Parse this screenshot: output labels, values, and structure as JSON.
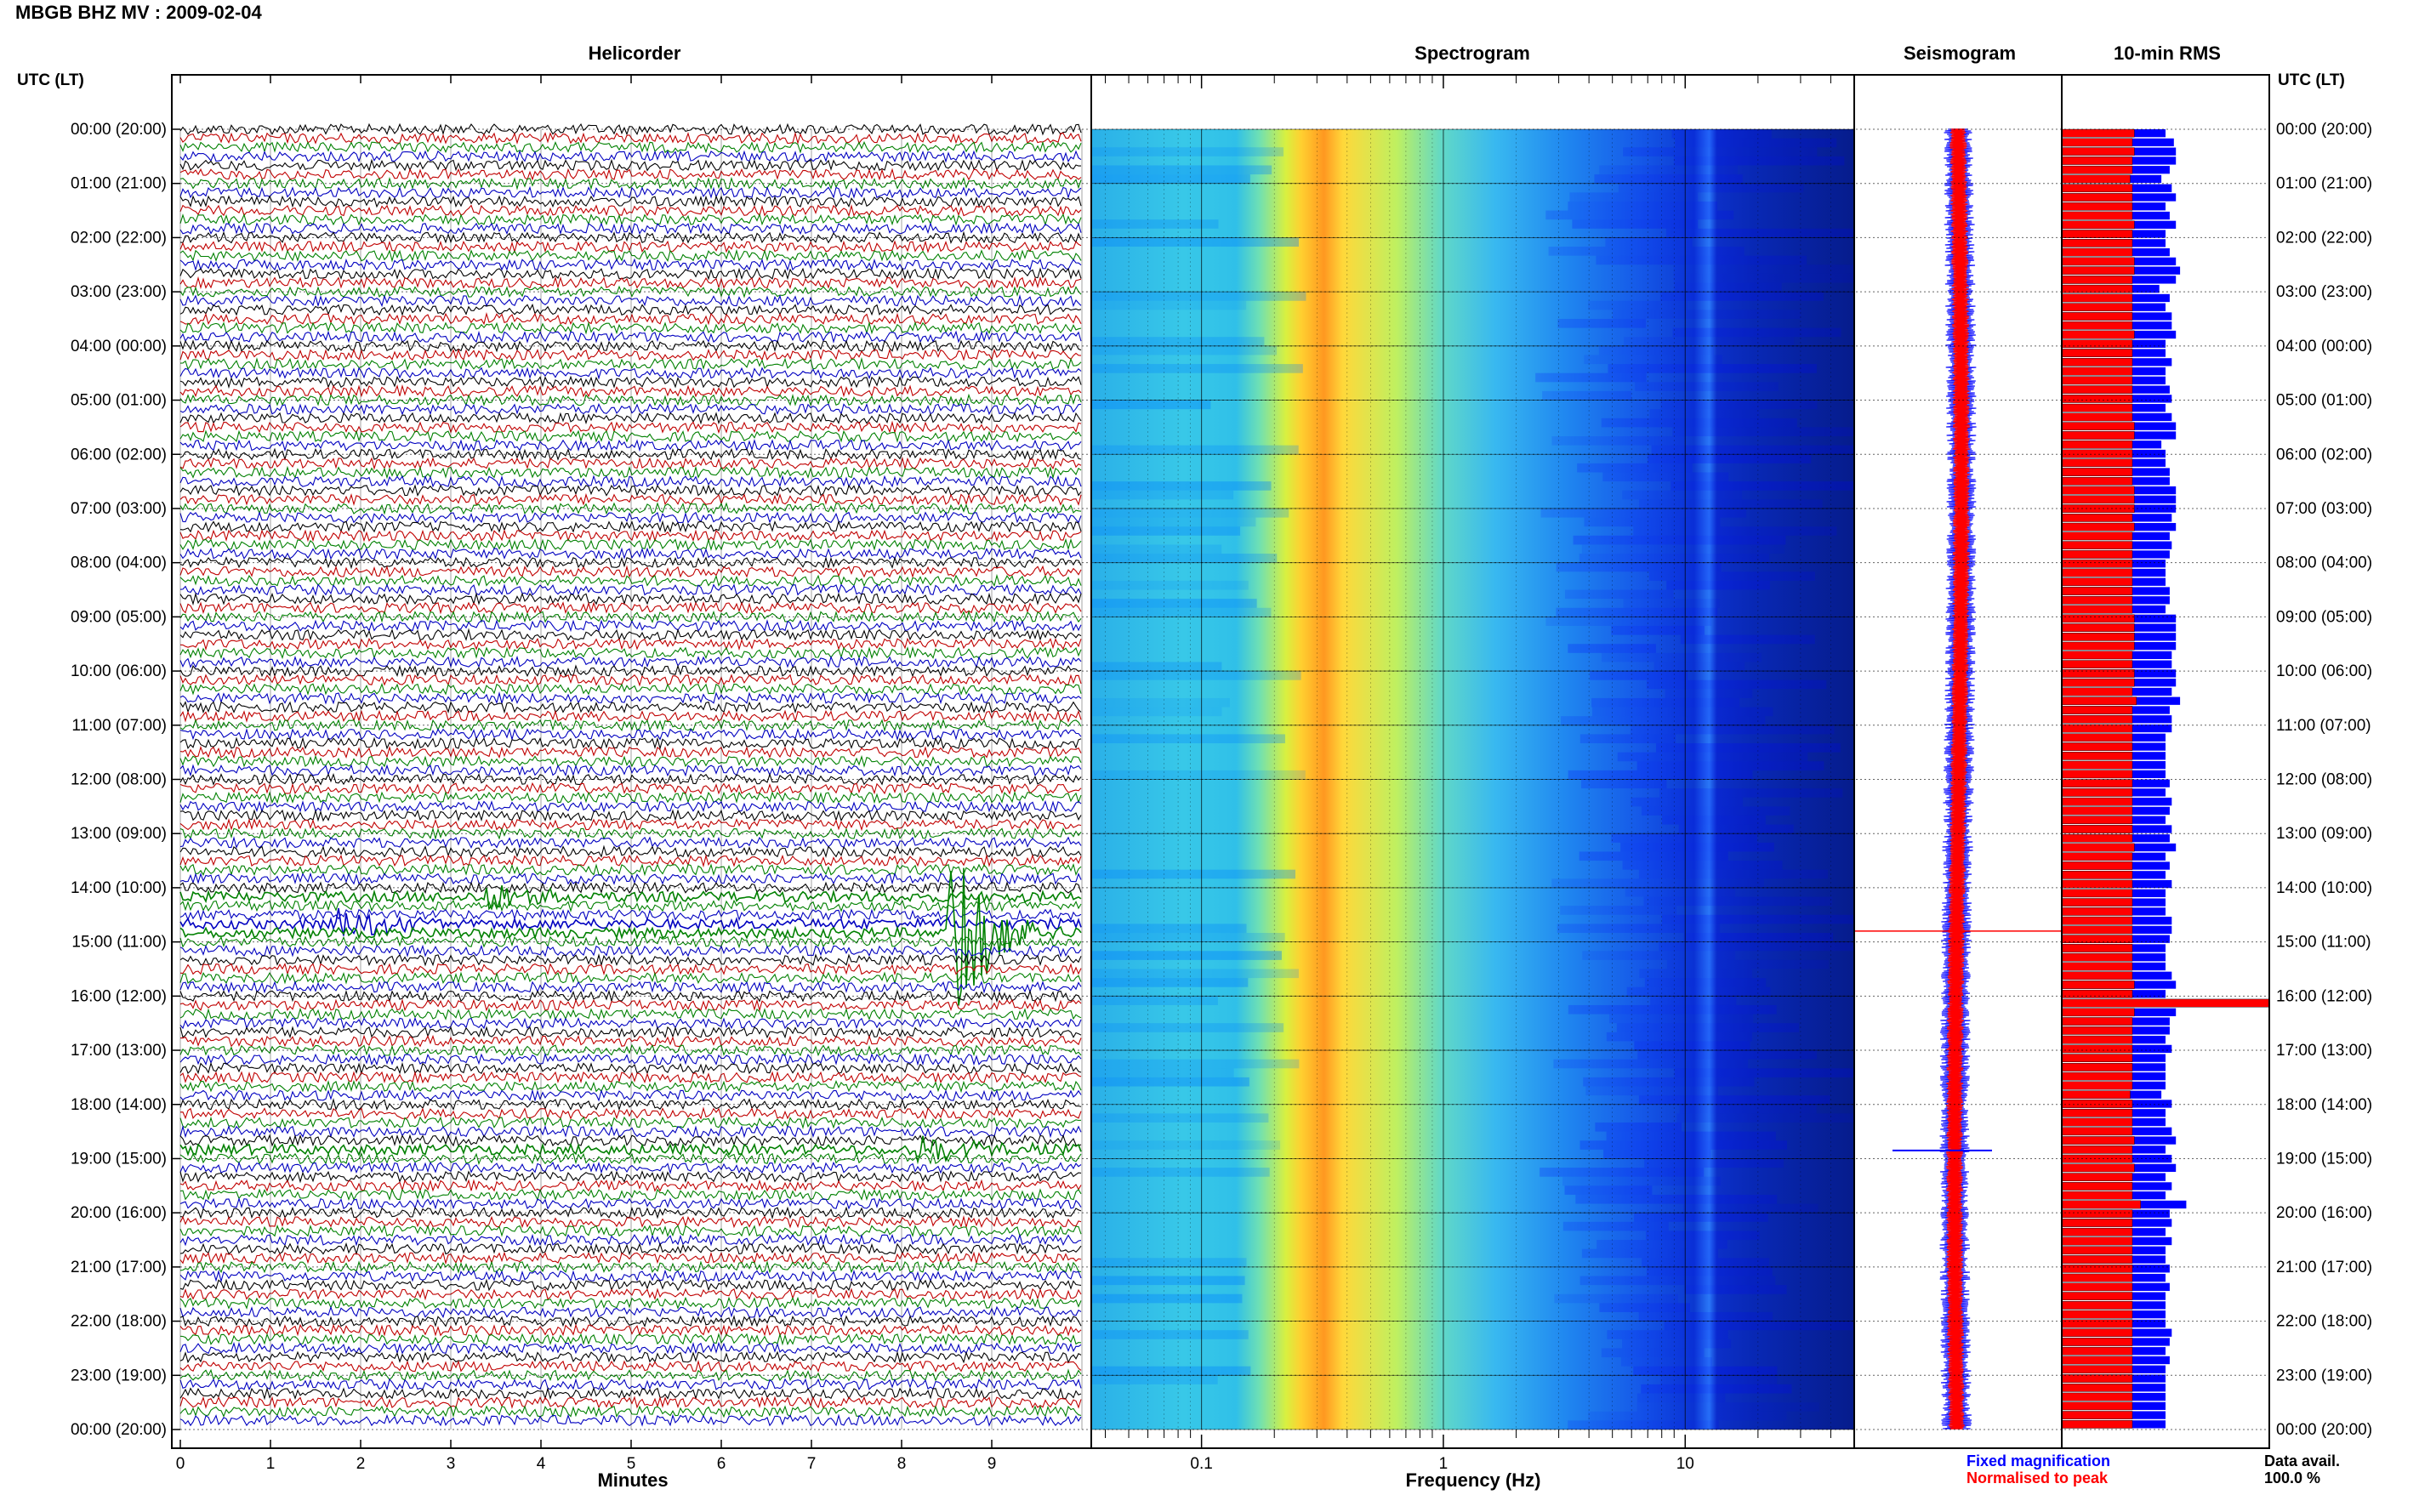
{
  "header": {
    "title": "MBGB BHZ MV : 2009-02-04",
    "utc_label": "UTC (LT)",
    "utc_label_right": "UTC (LT)"
  },
  "panels": {
    "helicorder": "Helicorder",
    "spectrogram": "Spectrogram",
    "seismogram": "Seismogram",
    "rms": "10-min RMS"
  },
  "axes": {
    "helicorder_xlabel": "Minutes",
    "spectrogram_xlabel": "Frequency (Hz)"
  },
  "legend": {
    "fixed": "Fixed magnification",
    "normalised": "Normalised to peak",
    "fixed_color": "#0000ff",
    "normalised_color": "#ff0000"
  },
  "data_avail": {
    "label": "Data avail.",
    "value": "100.0 %"
  },
  "chart_data": {
    "type": "helicorder-spectrogram",
    "time_labels": [
      "00:00 (20:00)",
      "01:00 (21:00)",
      "02:00 (22:00)",
      "03:00 (23:00)",
      "04:00 (00:00)",
      "05:00 (01:00)",
      "06:00 (02:00)",
      "07:00 (03:00)",
      "08:00 (04:00)",
      "09:00 (05:00)",
      "10:00 (06:00)",
      "11:00 (07:00)",
      "12:00 (08:00)",
      "13:00 (09:00)",
      "14:00 (10:00)",
      "15:00 (11:00)",
      "16:00 (12:00)",
      "17:00 (13:00)",
      "18:00 (14:00)",
      "19:00 (15:00)",
      "20:00 (16:00)",
      "21:00 (17:00)",
      "22:00 (18:00)",
      "23:00 (19:00)",
      "00:00 (20:00)"
    ],
    "helicorder": {
      "x_ticks": [
        "0",
        "1",
        "2",
        "3",
        "4",
        "5",
        "6",
        "7",
        "8",
        "9"
      ],
      "xlim": [
        0,
        10
      ],
      "trace_colors": [
        "#000000",
        "#c00000",
        "#008000",
        "#0000c0"
      ],
      "traces_per_hour": 6,
      "events": [
        {
          "time": "14:10",
          "minute": 3.4,
          "amplitude": "medium",
          "color": "#008000"
        },
        {
          "time": "14:40",
          "minute": 1.8,
          "amplitude": "medium",
          "color": "#0000c0"
        },
        {
          "time": "14:50",
          "minute": 8.55,
          "amplitude": "large",
          "color": "#008000"
        },
        {
          "time": "18:50",
          "minute": 8.2,
          "amplitude": "medium",
          "color": "#008000"
        }
      ]
    },
    "spectrogram": {
      "x_scale": "log",
      "xlim": [
        0.035,
        50
      ],
      "x_ticks": [
        0.1,
        1,
        10
      ],
      "x_tick_labels": [
        "0.1",
        "1",
        "10"
      ],
      "peak_band_hz": [
        0.18,
        0.35
      ],
      "colormap": [
        "#00008b",
        "#0000ff",
        "#0080ff",
        "#00c8ff",
        "#40e0d0",
        "#c8ff40",
        "#ffff00",
        "#ffa500",
        "#ff4000"
      ]
    },
    "seismogram": {
      "series": [
        {
          "name": "Fixed magnification",
          "color": "#0000ff"
        },
        {
          "name": "Normalised to peak",
          "color": "#ff0000"
        }
      ]
    },
    "rms": {
      "intervals_per_hour": 6,
      "fixed_values": [
        0.5,
        0.54,
        0.55,
        0.55,
        0.52,
        0.48,
        0.53,
        0.55,
        0.5,
        0.52,
        0.55,
        0.5,
        0.5,
        0.52,
        0.55,
        0.57,
        0.55,
        0.47,
        0.52,
        0.5,
        0.53,
        0.53,
        0.55,
        0.5,
        0.5,
        0.53,
        0.5,
        0.5,
        0.52,
        0.53,
        0.5,
        0.53,
        0.55,
        0.55,
        0.48,
        0.5,
        0.5,
        0.52,
        0.52,
        0.55,
        0.55,
        0.55,
        0.53,
        0.55,
        0.52,
        0.53,
        0.52,
        0.5,
        0.5,
        0.5,
        0.52,
        0.52,
        0.5,
        0.55,
        0.55,
        0.55,
        0.55,
        0.53,
        0.53,
        0.55,
        0.55,
        0.53,
        0.57,
        0.52,
        0.53,
        0.53,
        0.5,
        0.5,
        0.5,
        0.5,
        0.5,
        0.52,
        0.5,
        0.53,
        0.52,
        0.5,
        0.53,
        0.52,
        0.55,
        0.5,
        0.52,
        0.5,
        0.53,
        0.5,
        0.5,
        0.5,
        0.53,
        0.53,
        0.52,
        0.5,
        0.5,
        0.5,
        0.53,
        0.55,
        0.5,
        1.0,
        0.55,
        0.52,
        0.52,
        0.5,
        0.53,
        0.5,
        0.5,
        0.5,
        0.5,
        0.48,
        0.53,
        0.5,
        0.5,
        0.53,
        0.55,
        0.5,
        0.53,
        0.55,
        0.5,
        0.53,
        0.5,
        0.6,
        0.52,
        0.53,
        0.5,
        0.53,
        0.5,
        0.5,
        0.52,
        0.5,
        0.52,
        0.5,
        0.5,
        0.5,
        0.5,
        0.53,
        0.52,
        0.5,
        0.52,
        0.5,
        0.5,
        0.5,
        0.5,
        0.5,
        0.5,
        0.5
      ],
      "normalised_values": [
        0.35,
        0.34,
        0.35,
        0.34,
        0.34,
        0.33,
        0.34,
        0.34,
        0.34,
        0.34,
        0.35,
        0.34,
        0.34,
        0.34,
        0.35,
        0.35,
        0.34,
        0.34,
        0.34,
        0.34,
        0.34,
        0.34,
        0.35,
        0.34,
        0.34,
        0.34,
        0.34,
        0.34,
        0.34,
        0.34,
        0.34,
        0.34,
        0.35,
        0.35,
        0.34,
        0.34,
        0.34,
        0.34,
        0.34,
        0.35,
        0.35,
        0.35,
        0.34,
        0.35,
        0.34,
        0.34,
        0.34,
        0.34,
        0.34,
        0.34,
        0.34,
        0.34,
        0.34,
        0.35,
        0.35,
        0.35,
        0.35,
        0.34,
        0.34,
        0.35,
        0.35,
        0.34,
        0.36,
        0.34,
        0.34,
        0.34,
        0.34,
        0.34,
        0.34,
        0.34,
        0.34,
        0.34,
        0.34,
        0.34,
        0.34,
        0.34,
        0.34,
        0.34,
        0.35,
        0.34,
        0.34,
        0.34,
        0.34,
        0.34,
        0.34,
        0.34,
        0.34,
        0.34,
        0.34,
        0.34,
        0.34,
        0.34,
        0.34,
        0.35,
        0.34,
        1.0,
        0.35,
        0.34,
        0.34,
        0.34,
        0.34,
        0.34,
        0.34,
        0.34,
        0.34,
        0.33,
        0.34,
        0.34,
        0.34,
        0.34,
        0.35,
        0.34,
        0.34,
        0.35,
        0.34,
        0.34,
        0.34,
        0.38,
        0.34,
        0.34,
        0.34,
        0.34,
        0.34,
        0.34,
        0.34,
        0.34,
        0.34,
        0.34,
        0.34,
        0.34,
        0.34,
        0.34,
        0.34,
        0.34,
        0.34,
        0.34,
        0.34,
        0.34,
        0.34,
        0.34,
        0.34,
        0.34
      ]
    }
  }
}
